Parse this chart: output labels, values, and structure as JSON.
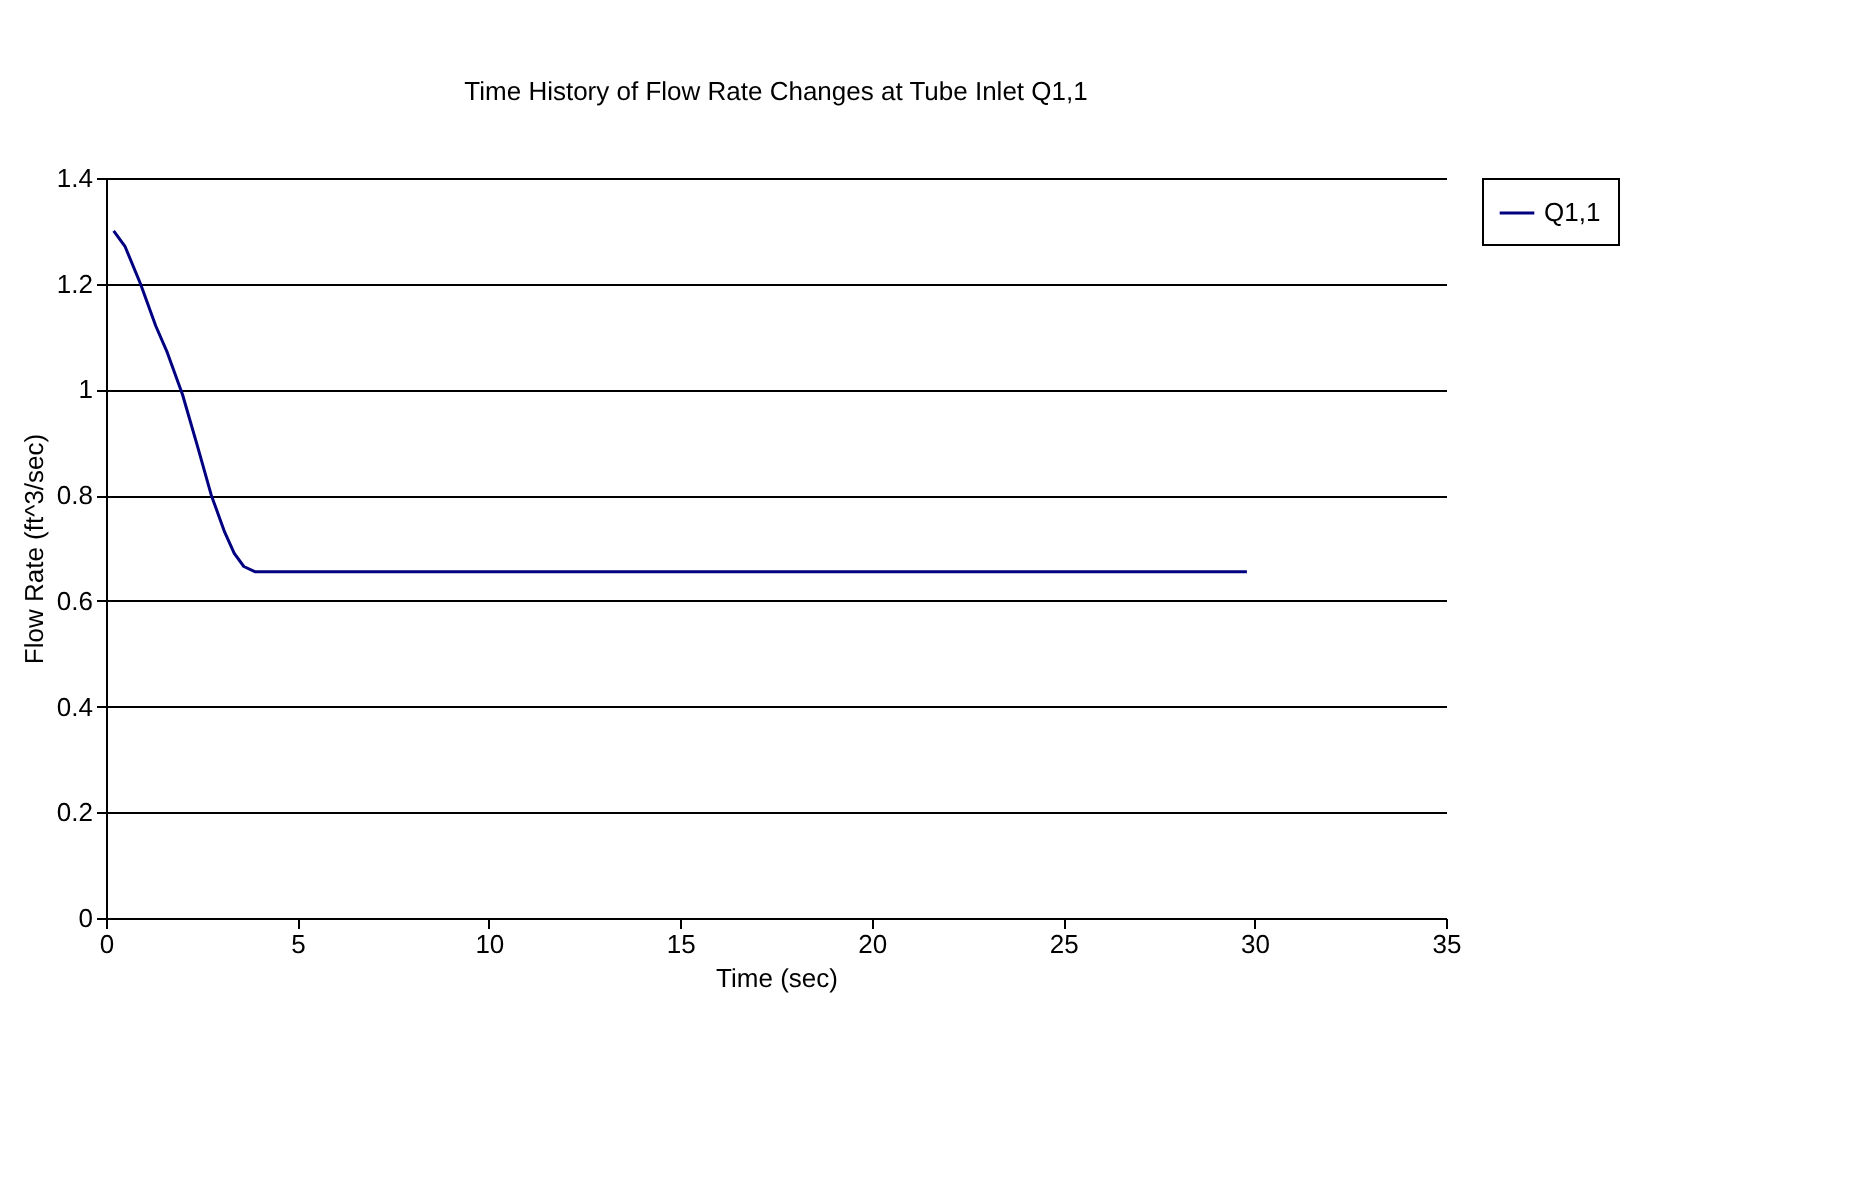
{
  "chart_data": {
    "type": "line",
    "title": "Time History of Flow Rate Changes at Tube Inlet Q1,1",
    "xlabel": "Time (sec)",
    "ylabel": "Flow Rate (ft^3/sec)",
    "x": [
      0.2,
      0.5,
      0.9,
      1.3,
      1.6,
      2.0,
      2.4,
      2.75,
      3.1,
      3.35,
      3.6,
      3.9,
      5,
      10,
      20,
      29.8
    ],
    "series": [
      {
        "name": "Q1,1",
        "color": "#000080",
        "values": [
          1.3,
          1.27,
          1.2,
          1.12,
          1.07,
          0.99,
          0.89,
          0.8,
          0.73,
          0.69,
          0.665,
          0.655,
          0.655,
          0.655,
          0.655,
          0.655
        ]
      }
    ],
    "xlim": [
      0,
      35
    ],
    "xticks": [
      0,
      5,
      10,
      15,
      20,
      25,
      30,
      35
    ],
    "ylim": [
      0,
      1.4
    ],
    "yticks": [
      0,
      0.2,
      0.4,
      0.6,
      0.8,
      1,
      1.2,
      1.4
    ],
    "grid": "y",
    "legend": "right",
    "marker": "none",
    "line_style": "solid"
  }
}
